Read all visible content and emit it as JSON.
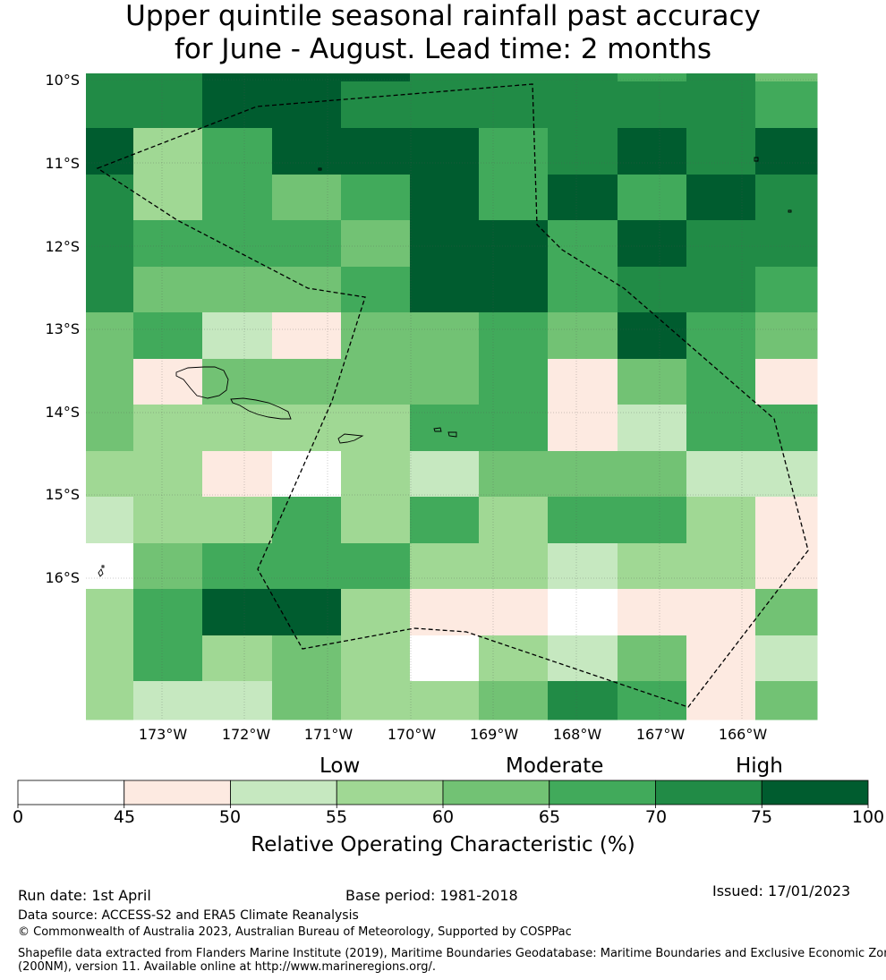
{
  "title_line1": "Upper quintile seasonal rainfall past accuracy",
  "title_line2": "for June - August. Lead time: 2 months",
  "lat_labels": [
    "10°S",
    "11°S",
    "12°S",
    "13°S",
    "14°S",
    "15°S",
    "16°S"
  ],
  "lon_labels": [
    "173°W",
    "172°W",
    "171°W",
    "170°W",
    "169°W",
    "168°W",
    "167°W",
    "166°W"
  ],
  "categories": {
    "low": "Low",
    "moderate": "Moderate",
    "high": "High"
  },
  "colorbar": {
    "ticks": [
      "0",
      "45",
      "50",
      "55",
      "60",
      "65",
      "70",
      "75",
      "100"
    ],
    "colors": [
      "#ffffff",
      "#fdeae1",
      "#c6e8c0",
      "#a0d894",
      "#72c274",
      "#41aa5b",
      "#218b46",
      "#005c2f"
    ],
    "title": "Relative Operating Characteristic (%)"
  },
  "footer": {
    "run_date": "Run date: 1st April",
    "base_period": "Base period: 1981-2018",
    "issued": "Issued: 17/01/2023",
    "data_source": "Data source: ACCESS-S2 and ERA5 Climate Reanalysis",
    "copyright": "© Commonwealth of Australia 2023, Australian Bureau of Meteorology, Supported by COSPPac",
    "shapefile_line1": "Shapefile data extracted from Flanders Marine Institute (2019), Maritime Boundaries Geodatabase: Maritime Boundaries and Exclusive Economic Zones",
    "shapefile_line2": "(200NM), version 11. Available online at http://www.marineregions.org/."
  },
  "map_grid": [
    [
      6,
      6,
      7,
      7,
      7,
      6,
      6,
      6,
      5,
      6,
      4
    ],
    [
      6,
      6,
      7,
      7,
      6,
      6,
      6,
      6,
      6,
      6,
      5
    ],
    [
      7,
      3,
      5,
      7,
      7,
      7,
      5,
      6,
      7,
      6,
      7
    ],
    [
      6,
      3,
      5,
      4,
      5,
      7,
      5,
      7,
      5,
      7,
      6
    ],
    [
      6,
      5,
      5,
      5,
      4,
      7,
      7,
      5,
      7,
      6,
      6
    ],
    [
      6,
      4,
      4,
      4,
      5,
      7,
      7,
      5,
      6,
      6,
      5
    ],
    [
      4,
      5,
      2,
      1,
      4,
      4,
      5,
      4,
      7,
      5,
      4
    ],
    [
      4,
      1,
      4,
      4,
      4,
      4,
      5,
      1,
      4,
      5,
      1
    ],
    [
      4,
      3,
      3,
      3,
      3,
      5,
      5,
      1,
      2,
      5,
      5
    ],
    [
      3,
      3,
      1,
      0,
      3,
      2,
      4,
      4,
      4,
      2,
      2
    ],
    [
      2,
      3,
      3,
      5,
      3,
      5,
      3,
      5,
      5,
      3,
      1
    ],
    [
      0,
      4,
      5,
      5,
      5,
      3,
      3,
      2,
      3,
      3,
      1
    ],
    [
      3,
      5,
      7,
      7,
      3,
      1,
      1,
      0,
      1,
      1,
      4
    ],
    [
      3,
      5,
      3,
      4,
      3,
      0,
      3,
      2,
      4,
      1,
      2
    ],
    [
      3,
      2,
      2,
      4,
      3,
      3,
      4,
      6,
      5,
      1,
      4
    ]
  ]
}
